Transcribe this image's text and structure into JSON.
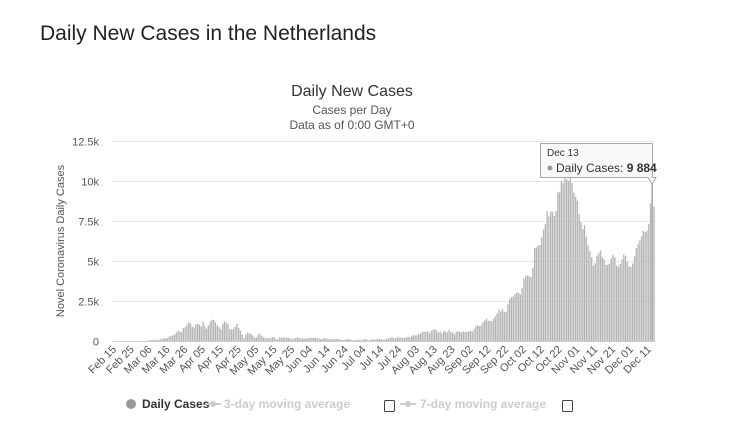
{
  "page": {
    "title": "Daily New Cases in the Netherlands"
  },
  "chart_data": {
    "type": "bar",
    "title": "Daily New Cases",
    "subtitle": "Cases per Day",
    "subtitle2": "Data as of 0:00 GMT+0",
    "ylabel": "Novel Coronavirus Daily Cases",
    "xlabel": "",
    "ylim": [
      0,
      12500
    ],
    "yticks": [
      0,
      2500,
      5000,
      7500,
      10000,
      12500
    ],
    "ytick_labels": [
      "0",
      "2.5k",
      "5k",
      "7.5k",
      "10k",
      "12.5k"
    ],
    "grid": true,
    "bar_color": "#b5b5b5",
    "start_date": "Feb 15",
    "end_date": "Dec 14",
    "xtick_labels": [
      "Feb 15",
      "Feb 25",
      "Mar 06",
      "Mar 16",
      "Mar 26",
      "Apr 05",
      "Apr 15",
      "Apr 25",
      "May 05",
      "May 15",
      "May 25",
      "Jun 04",
      "Jun 14",
      "Jun 24",
      "Jul 04",
      "Jul 14",
      "Jul 24",
      "Aug 03",
      "Aug 13",
      "Aug 23",
      "Sep 02",
      "Sep 12",
      "Sep 22",
      "Oct 02",
      "Oct 12",
      "Oct 22",
      "Nov 01",
      "Nov 11",
      "Nov 21",
      "Dec 01",
      "Dec 11"
    ],
    "values": [
      0,
      0,
      0,
      0,
      0,
      0,
      0,
      0,
      0,
      0,
      0,
      0,
      1,
      1,
      0,
      4,
      6,
      6,
      5,
      20,
      44,
      46,
      60,
      77,
      56,
      61,
      121,
      111,
      190,
      155,
      176,
      278,
      292,
      346,
      409,
      534,
      637,
      573,
      545,
      811,
      852,
      1019,
      1172,
      1104,
      884,
      845,
      1019,
      1083,
      1026,
      904,
      1224,
      952,
      777,
      969,
      1213,
      1335,
      1316,
      1174,
      964,
      868,
      734,
      1061,
      1235,
      1140,
      1066,
      750,
      729,
      729,
      887,
      1066,
      815,
      655,
      400,
      171,
      386,
      514,
      475,
      445,
      335,
      199,
      232,
      386,
      455,
      319,
      247,
      147,
      196,
      161,
      199,
      252,
      228,
      125,
      99,
      238,
      189,
      232,
      182,
      220,
      214,
      141,
      144,
      144,
      180,
      233,
      184,
      150,
      182,
      122,
      183,
      168,
      196,
      180,
      200,
      208,
      168,
      172,
      123,
      114,
      179,
      167,
      138,
      115,
      102,
      116,
      106,
      123,
      99,
      93,
      67,
      61,
      90,
      113,
      118,
      80,
      46,
      55,
      68,
      57,
      83,
      52,
      83,
      130,
      96,
      52,
      46,
      121,
      87,
      102,
      139,
      110,
      102,
      72,
      101,
      139,
      160,
      183,
      253,
      177,
      161,
      238,
      212,
      230,
      184,
      192,
      237,
      260,
      220,
      288,
      370,
      344,
      366,
      426,
      464,
      562,
      561,
      583,
      606,
      478,
      622,
      707,
      732,
      665,
      524,
      606,
      477,
      614,
      591,
      546,
      698,
      572,
      546,
      418,
      579,
      623,
      569,
      552,
      601,
      555,
      575,
      599,
      630,
      578,
      739,
      905,
      986,
      935,
      969,
      1179,
      1270,
      1389,
      1262,
      1277,
      1231,
      1399,
      1542,
      1723,
      1976,
      1847,
      2009,
      1802,
      1832,
      2296,
      2624,
      2741,
      2791,
      2941,
      3036,
      3002,
      2919,
      3339,
      3906,
      4055,
      4101,
      4059,
      3998,
      4572,
      5817,
      5856,
      5966,
      6001,
      6488,
      6968,
      7329,
      8112,
      7781,
      8085,
      8088,
      7817,
      8129,
      9280,
      9329,
      10006,
      9863,
      10269,
      10105,
      9997,
      10344,
      9879,
      9285,
      9021,
      8778,
      7945,
      7431,
      7000,
      7235,
      6522,
      5967,
      5606,
      5226,
      4708,
      4867,
      5337,
      5512,
      5650,
      5218,
      5105,
      4747,
      4766,
      4839,
      5170,
      5376,
      5217,
      4702,
      4650,
      4817,
      5101,
      5401,
      5317,
      4938,
      4674,
      4626,
      4846,
      5299,
      5815,
      6054,
      6281,
      6538,
      6893,
      6804,
      6883,
      7303,
      8600,
      9884,
      8400
    ],
    "tooltip": {
      "date": "Dec 13",
      "series": "Daily Cases: ",
      "value": "9 884"
    },
    "legend": {
      "placement": "bottom",
      "items": [
        {
          "label": "Daily Cases",
          "color": "#999999",
          "active": true
        },
        {
          "label": "3-day moving average",
          "color": "#cccccc",
          "active": false,
          "checked": false
        },
        {
          "label": "7-day moving average",
          "color": "#cccccc",
          "active": false,
          "checked": false
        }
      ]
    }
  }
}
